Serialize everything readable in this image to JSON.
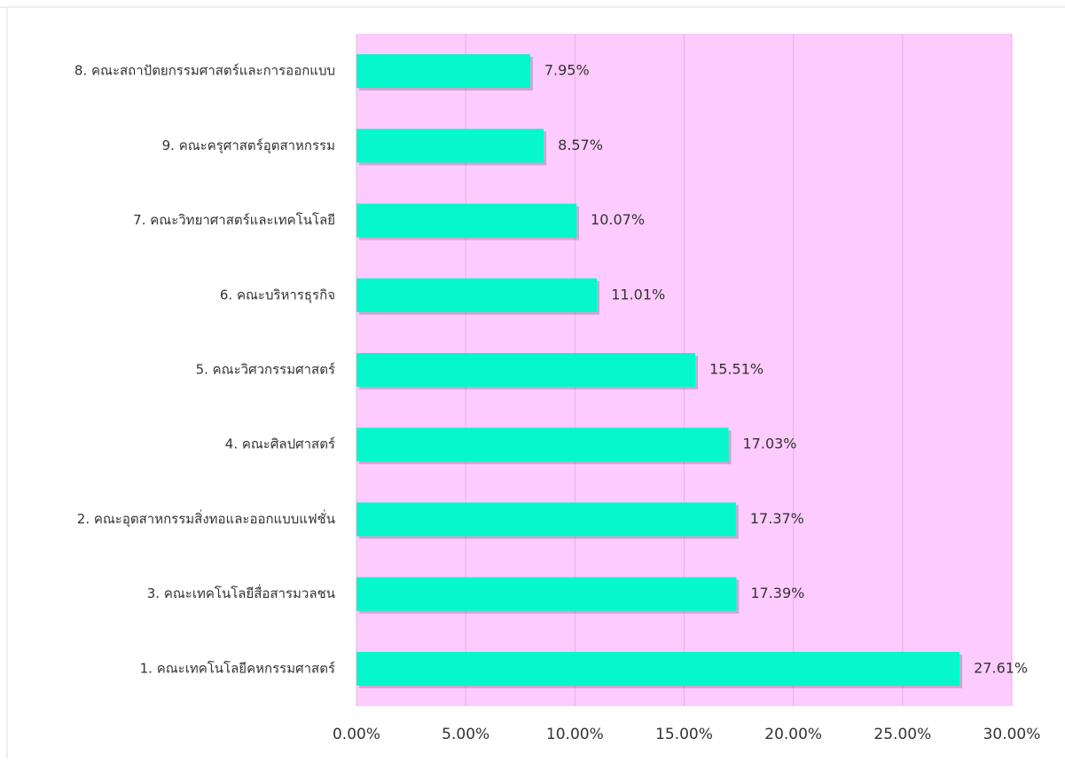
{
  "chart_data": {
    "type": "barh",
    "categories": [
      "8. คณะสถาปัตยกรรมศาสตร์และการออกแบบ",
      "9. คณะครุศาสตร์อุตสาหกรรม",
      "7. คณะวิทยาศาสตร์และเทคโนโลยี",
      "6. คณะบริหารธุรกิจ",
      "5. คณะวิศวกรรมศาสตร์",
      "4. คณะศิลปศาสตร์",
      "2. คณะอุตสาหกรรมสิ่งทอและออกแบบแฟชั่น",
      "3. คณะเทคโนโลยีสื่อสารมวลชน",
      "1. คณะเทคโนโลยีคหกรรมศาสตร์"
    ],
    "values": [
      7.95,
      8.57,
      10.07,
      11.01,
      15.51,
      17.03,
      17.37,
      17.39,
      27.61
    ],
    "value_labels": [
      "7.95%",
      "8.57%",
      "10.07%",
      "11.01%",
      "15.51%",
      "17.03%",
      "17.37%",
      "17.39%",
      "27.61%"
    ],
    "color": "#06f7cc",
    "background": "#fdcbfd",
    "xlim": [
      0,
      30
    ],
    "xticks": [
      {
        "value": 0,
        "label": "0.00%"
      },
      {
        "value": 5,
        "label": "5.00%"
      },
      {
        "value": 10,
        "label": "10.00%"
      },
      {
        "value": 15,
        "label": "15.00%"
      },
      {
        "value": 20,
        "label": "20.00%"
      },
      {
        "value": 25,
        "label": "25.00%"
      },
      {
        "value": 30,
        "label": "30.00%"
      }
    ],
    "grid": true
  }
}
